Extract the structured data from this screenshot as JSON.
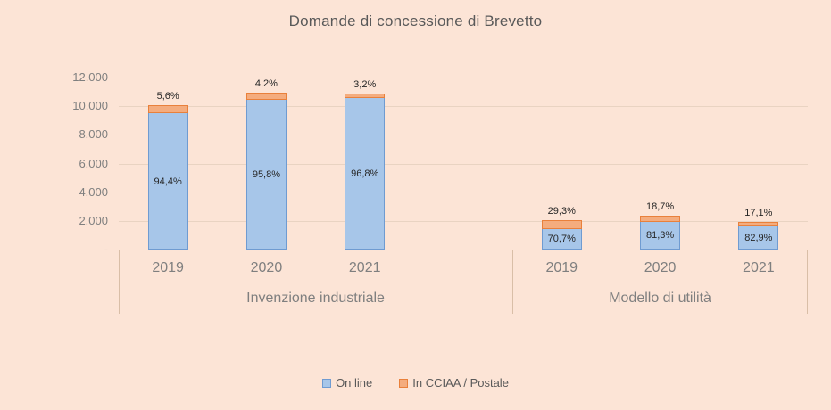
{
  "chart_data": {
    "type": "bar",
    "stacked": true,
    "title": "Domande di concessione di Brevetto",
    "xlabel": "",
    "ylabel": "",
    "ylim": [
      0,
      12000
    ],
    "y_step": 2000,
    "y_tick_labels": [
      "-",
      "2.000",
      "4.000",
      "6.000",
      "8.000",
      "10.000",
      "12.000"
    ],
    "grid": true,
    "legend_position": "bottom",
    "series_names": [
      "On line",
      "In CCIAA / Postale"
    ],
    "groups": [
      {
        "label": "Invenzione industriale",
        "bars": [
          {
            "year": "2019",
            "total_estimate": 10050,
            "online_pct": 94.4,
            "postale_pct": 5.6,
            "online_label": "94,4%",
            "postale_label": "5,6%"
          },
          {
            "year": "2020",
            "total_estimate": 10920,
            "online_pct": 95.8,
            "postale_pct": 4.2,
            "online_label": "95,8%",
            "postale_label": "4,2%"
          },
          {
            "year": "2021",
            "total_estimate": 10890,
            "online_pct": 96.8,
            "postale_pct": 3.2,
            "online_label": "96,8%",
            "postale_label": "3,2%"
          }
        ]
      },
      {
        "label": "Modello di utilità",
        "bars": [
          {
            "year": "2019",
            "total_estimate": 2050,
            "online_pct": 70.7,
            "postale_pct": 29.3,
            "online_label": "70,7%",
            "postale_label": "29,3%"
          },
          {
            "year": "2020",
            "total_estimate": 2380,
            "online_pct": 81.3,
            "postale_pct": 18.7,
            "online_label": "81,3%",
            "postale_label": "18,7%"
          },
          {
            "year": "2021",
            "total_estimate": 1930,
            "online_pct": 82.9,
            "postale_pct": 17.1,
            "online_label": "82,9%",
            "postale_label": "17,1%"
          }
        ]
      }
    ]
  },
  "legend": {
    "items": [
      {
        "label": "On line",
        "key": "online"
      },
      {
        "label": "In CCIAA / Postale",
        "key": "postale"
      }
    ]
  },
  "colors": {
    "background": "#FCE4D6",
    "online_fill": "#A7C6E9",
    "online_border": "#6F9BD1",
    "postale_fill": "#F4AC7E",
    "postale_border": "#E9803B",
    "title_text": "#595959",
    "axis_text": "#7F7F7F",
    "label_text": "#262626",
    "legend_text": "#595959",
    "gridline": "#E9D3C2",
    "axis_line": "#D9BEA7"
  }
}
